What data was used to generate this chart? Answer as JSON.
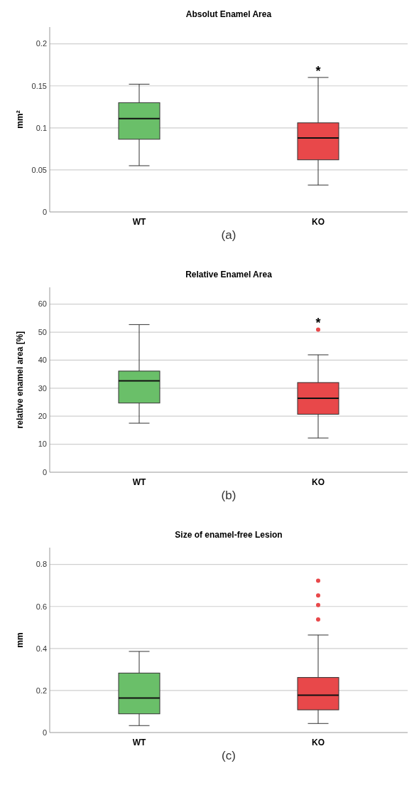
{
  "chart_data": [
    {
      "type": "box",
      "title": "Absolut Enamel Area",
      "ylabel": "mm²",
      "categories": [
        "WT",
        "KO"
      ],
      "colors": [
        "#6abf69",
        "#e8484a"
      ],
      "boxes": [
        {
          "low": 0.055,
          "q1": 0.0865,
          "median": 0.111,
          "q3": 0.13,
          "high": 0.152
        },
        {
          "low": 0.032,
          "q1": 0.062,
          "median": 0.088,
          "q3": 0.106,
          "high": 0.16
        }
      ],
      "ylim": [
        0,
        0.22
      ],
      "yticks": [
        0,
        0.05,
        {
          "value": 0.1,
          "label": "0.1"
        },
        0.15,
        {
          "value": 0.2,
          "label": "0.2"
        }
      ],
      "grid": "y",
      "annotations": [
        "(a)",
        "*"
      ]
    },
    {
      "type": "box",
      "title": "Relative Enamel Area",
      "ylabel": "relative enamel area [%]",
      "categories": [
        "WT",
        "KO"
      ],
      "colors": [
        "#6abf69",
        "#e8484a"
      ],
      "boxes": [
        {
          "low": 17.5,
          "q1": 24.7,
          "median": 32.6,
          "q3": 36.1,
          "high": 52.7
        },
        {
          "low": 12.2,
          "q1": 20.7,
          "median": 26.4,
          "q3": 32.0,
          "high": 41.9,
          "outliers": [
            50.9
          ]
        }
      ],
      "ylim": [
        0,
        66
      ],
      "yticks": [
        0,
        10,
        20,
        30,
        40,
        50,
        60
      ],
      "grid": "y",
      "annotations": [
        "(b)",
        "*"
      ]
    },
    {
      "type": "box",
      "title": "Size of enamel-free Lesion",
      "ylabel": "mm",
      "categories": [
        "WT",
        "KO"
      ],
      "colors": [
        "#6abf69",
        "#e8484a"
      ],
      "boxes": [
        {
          "low": 0.033,
          "q1": 0.089,
          "median": 0.164,
          "q3": 0.283,
          "high": 0.386
        },
        {
          "low": 0.043,
          "q1": 0.108,
          "median": 0.178,
          "q3": 0.262,
          "high": 0.464,
          "outliers": [
            0.723,
            0.652,
            0.607,
            0.538
          ]
        }
      ],
      "ylim": [
        0,
        0.88
      ],
      "yticks": [
        0,
        0.2,
        0.4,
        0.6,
        0.8
      ],
      "grid": "y",
      "annotations": [
        "(c)"
      ]
    }
  ]
}
